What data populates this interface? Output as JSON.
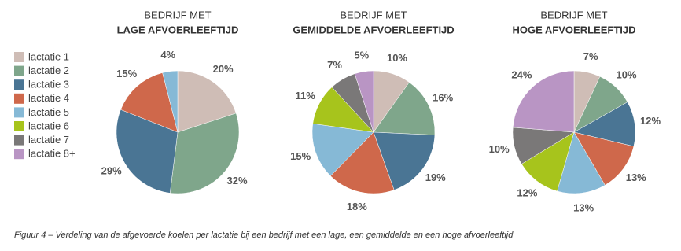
{
  "chart_data": [
    {
      "type": "pie",
      "title": "BEDRIJF MET",
      "subtitle": "LAGE AFVOERLEEFTIJD",
      "categories": [
        "lactatie 1",
        "lactatie 2",
        "lactatie 3",
        "lactatie 4",
        "lactatie 5"
      ],
      "values": [
        20,
        32,
        29,
        15,
        4
      ],
      "value_labels": [
        "20%",
        "32%",
        "29%",
        "15%",
        "4%"
      ],
      "colors": [
        "#cfbdb6",
        "#7fa68b",
        "#4a7594",
        "#cf684b",
        "#86b9d6"
      ]
    },
    {
      "type": "pie",
      "title": "BEDRIJF MET",
      "subtitle": "GEMIDDELDE AFVOERLEEFTIJD",
      "categories": [
        "lactatie 1",
        "lactatie 2",
        "lactatie 3",
        "lactatie 4",
        "lactatie 5",
        "lactatie 6",
        "lactatie 7",
        "lactatie 8+"
      ],
      "values": [
        10,
        16,
        19,
        18,
        15,
        11,
        7,
        5
      ],
      "value_labels": [
        "10%",
        "16%",
        "19%",
        "18%",
        "15%",
        "11%",
        "7%",
        "5%"
      ],
      "colors": [
        "#cfbdb6",
        "#7fa68b",
        "#4a7594",
        "#cf684b",
        "#86b9d6",
        "#a7c41c",
        "#7a7878",
        "#b995c4"
      ]
    },
    {
      "type": "pie",
      "title": "BEDRIJF MET",
      "subtitle": "HOGE AFVOERLEEFTIJD",
      "categories": [
        "lactatie 1",
        "lactatie 2",
        "lactatie 3",
        "lactatie 4",
        "lactatie 5",
        "lactatie 6",
        "lactatie 7",
        "lactatie 8+"
      ],
      "values": [
        7,
        10,
        12,
        13,
        13,
        12,
        10,
        24
      ],
      "value_labels": [
        "7%",
        "10%",
        "12%",
        "13%",
        "13%",
        "12%",
        "10%",
        "24%"
      ],
      "colors": [
        "#cfbdb6",
        "#7fa68b",
        "#4a7594",
        "#cf684b",
        "#86b9d6",
        "#a7c41c",
        "#7a7878",
        "#b995c4"
      ]
    }
  ],
  "caption": "Figuur 4 – Verdeling van de afgevoerde koelen per lactatie bij een bedrijf met een lage, een gemiddelde en een hoge afvoerleeftijd"
}
